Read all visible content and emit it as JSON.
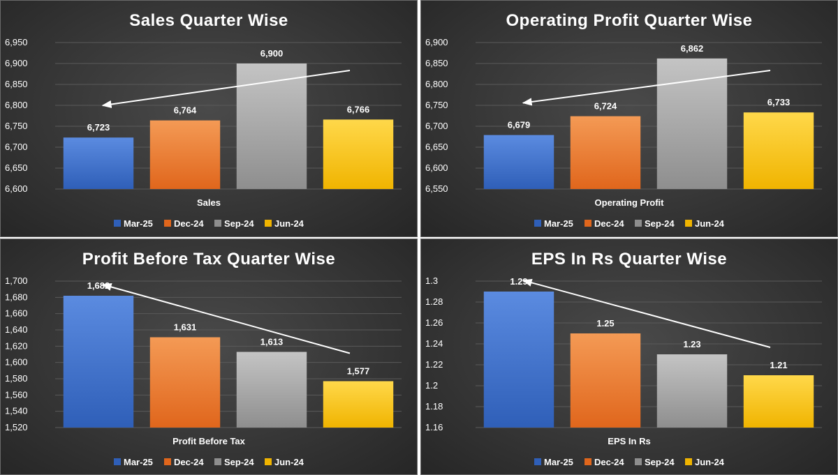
{
  "chart_data": [
    {
      "type": "bar",
      "title": "Sales Quarter Wise",
      "xlabel": "Sales",
      "ylabel": "",
      "ylim": [
        6600,
        6950
      ],
      "ystep": 50,
      "tick_decimals": 0,
      "label_decimals": 0,
      "series": [
        {
          "name": "Mar-25",
          "values": [
            6723
          ]
        },
        {
          "name": "Dec-24",
          "values": [
            6764
          ]
        },
        {
          "name": "Sep-24",
          "values": [
            6900
          ]
        },
        {
          "name": "Jun-24",
          "values": [
            6766
          ]
        }
      ],
      "trend_arrow": {
        "from_series": "Jun-24",
        "to_series": "Mar-25",
        "direction": "up-right"
      },
      "grid": true,
      "legend_position": "bottom"
    },
    {
      "type": "bar",
      "title": "Operating Profit Quarter Wise",
      "xlabel": "Operating Profit",
      "ylabel": "",
      "ylim": [
        6550,
        6900
      ],
      "ystep": 50,
      "tick_decimals": 0,
      "label_decimals": 0,
      "series": [
        {
          "name": "Mar-25",
          "values": [
            6679
          ]
        },
        {
          "name": "Dec-24",
          "values": [
            6724
          ]
        },
        {
          "name": "Sep-24",
          "values": [
            6862
          ]
        },
        {
          "name": "Jun-24",
          "values": [
            6733
          ]
        }
      ],
      "trend_arrow": {
        "from_series": "Jun-24",
        "to_series": "Mar-25",
        "direction": "up-right"
      },
      "grid": true,
      "legend_position": "bottom"
    },
    {
      "type": "bar",
      "title": "Profit Before Tax Quarter Wise",
      "xlabel": "Profit Before Tax",
      "ylabel": "",
      "ylim": [
        1520,
        1700
      ],
      "ystep": 20,
      "tick_decimals": 0,
      "label_decimals": 0,
      "series": [
        {
          "name": "Mar-25",
          "values": [
            1682
          ]
        },
        {
          "name": "Dec-24",
          "values": [
            1631
          ]
        },
        {
          "name": "Sep-24",
          "values": [
            1613
          ]
        },
        {
          "name": "Jun-24",
          "values": [
            1577
          ]
        }
      ],
      "trend_arrow": {
        "from_series": "Jun-24",
        "to_series": "Mar-25",
        "direction": "down-right"
      },
      "grid": true,
      "legend_position": "bottom"
    },
    {
      "type": "bar",
      "title": "EPS In Rs Quarter Wise",
      "xlabel": "EPS In Rs",
      "ylabel": "",
      "ylim": [
        1.16,
        1.3
      ],
      "ystep": 0.02,
      "tick_decimals": 2,
      "label_decimals": 2,
      "series": [
        {
          "name": "Mar-25",
          "values": [
            1.29
          ]
        },
        {
          "name": "Dec-24",
          "values": [
            1.25
          ]
        },
        {
          "name": "Sep-24",
          "values": [
            1.23
          ]
        },
        {
          "name": "Jun-24",
          "values": [
            1.21
          ]
        }
      ],
      "trend_arrow": {
        "from_series": "Jun-24",
        "to_series": "Mar-25",
        "direction": "down-right"
      },
      "grid": true,
      "legend_position": "bottom"
    }
  ],
  "colors": {
    "Mar-25": [
      "#5b8be0",
      "#2f5fb8"
    ],
    "Dec-24": [
      "#f49a55",
      "#e0661c"
    ],
    "Sep-24": [
      "#c4c4c4",
      "#8e8e8e"
    ],
    "Jun-24": [
      "#ffd84a",
      "#f0b400"
    ],
    "background": "#333333",
    "text": "#ffffff"
  }
}
